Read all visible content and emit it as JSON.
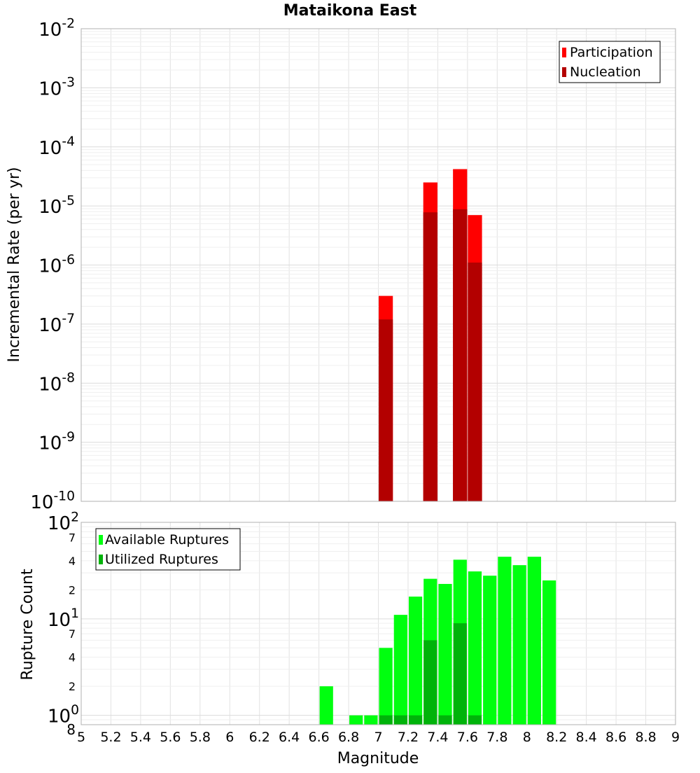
{
  "chart_data": [
    {
      "type": "bar",
      "title": "Mataikona East",
      "xlabel": "",
      "ylabel": "Incremental Rate (per yr)",
      "yscale": "log",
      "ylim": [
        1e-10,
        0.01
      ],
      "xlim": [
        5,
        9
      ],
      "grid": true,
      "legend_position": "top-right",
      "y_ticks": [
        {
          "base": "10",
          "exp": "-10",
          "value": 1e-10
        },
        {
          "base": "10",
          "exp": "-9",
          "value": 1e-09
        },
        {
          "base": "10",
          "exp": "-8",
          "value": 1e-08
        },
        {
          "base": "10",
          "exp": "-7",
          "value": 1e-07
        },
        {
          "base": "10",
          "exp": "-6",
          "value": 1e-06
        },
        {
          "base": "10",
          "exp": "-5",
          "value": 1e-05
        },
        {
          "base": "10",
          "exp": "-4",
          "value": 0.0001
        },
        {
          "base": "10",
          "exp": "-3",
          "value": 0.001
        },
        {
          "base": "10",
          "exp": "-2",
          "value": 0.01
        }
      ],
      "series": [
        {
          "name": "Participation",
          "color": "#ff0000",
          "x": [
            7.05,
            7.35,
            7.55,
            7.65
          ],
          "values": [
            3e-07,
            2.5e-05,
            4.2e-05,
            7e-06
          ]
        },
        {
          "name": "Nucleation",
          "color": "#b30000",
          "x": [
            7.05,
            7.35,
            7.55,
            7.65
          ],
          "values": [
            1.2e-07,
            7.8e-06,
            8.8e-06,
            1.1e-06
          ]
        }
      ]
    },
    {
      "type": "bar",
      "title": "",
      "xlabel": "Magnitude",
      "ylabel": "Rupture Count",
      "yscale": "log",
      "ylim": [
        0.8,
        100
      ],
      "xlim": [
        5,
        9
      ],
      "grid": true,
      "legend_position": "top-left",
      "x_ticks": [
        "5",
        "5.2",
        "5.4",
        "5.6",
        "5.8",
        "6",
        "6.2",
        "6.4",
        "6.6",
        "6.8",
        "7",
        "7.2",
        "7.4",
        "7.6",
        "7.8",
        "8",
        "8.2",
        "8.4",
        "8.6",
        "8.8",
        "9"
      ],
      "y_major_ticks": [
        {
          "base": "10",
          "exp": "0",
          "value": 1
        },
        {
          "base": "10",
          "exp": "1",
          "value": 10
        },
        {
          "base": "10",
          "exp": "2",
          "value": 100
        }
      ],
      "y_minor_ticks": [
        {
          "label": "8",
          "value": 0.8
        },
        {
          "label": "2",
          "value": 2
        },
        {
          "label": "4",
          "value": 4
        },
        {
          "label": "7",
          "value": 7
        },
        {
          "label": "2",
          "value": 20
        },
        {
          "label": "4",
          "value": 40
        },
        {
          "label": "7",
          "value": 70
        }
      ],
      "series": [
        {
          "name": "Available Ruptures",
          "color": "#00ff0f",
          "x": [
            6.65,
            6.85,
            6.95,
            7.05,
            7.15,
            7.25,
            7.35,
            7.45,
            7.55,
            7.65,
            7.75,
            7.85,
            7.95,
            8.05,
            8.15
          ],
          "values": [
            2,
            1,
            1,
            5,
            11,
            17,
            26,
            23,
            41,
            31,
            28,
            44,
            36,
            44,
            25
          ]
        },
        {
          "name": "Utilized Ruptures",
          "color": "#00b30a",
          "x": [
            7.05,
            7.15,
            7.25,
            7.35,
            7.45,
            7.55,
            7.65
          ],
          "values": [
            1,
            1,
            1,
            6,
            1,
            9,
            1
          ]
        }
      ]
    }
  ]
}
